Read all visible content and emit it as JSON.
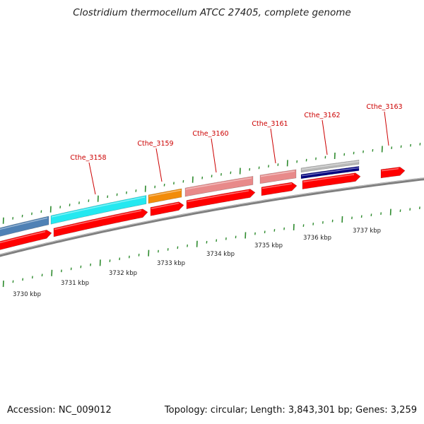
{
  "title": "Clostridium thermocellum ATCC 27405, complete genome",
  "footer": {
    "accession": "Accession: NC_009012",
    "summary": "Topology: circular; Length: 3,843,301 bp; Genes: 3,259"
  },
  "colors": {
    "backbone": "#7f7f7f",
    "cds": "#ff0000",
    "gene_label": "#cc0000",
    "tick": "#2e8b2e",
    "steelblue": "#4f81b5",
    "cyan": "#24e8f0",
    "orange": "#f28c0a",
    "pink": "#e88a8a",
    "grey": "#b8b8b8",
    "navy": "#000080"
  },
  "scale_labels": [
    "3730 kbp",
    "3731 kbp",
    "3732 kbp",
    "3733 kbp",
    "3734 kbp",
    "3735 kbp",
    "3736 kbp",
    "3737 kbp"
  ],
  "gene_labels": [
    "Cthe_3158",
    "Cthe_3159",
    "Cthe_3160",
    "Cthe_3161",
    "Cthe_3162",
    "Cthe_3163"
  ]
}
